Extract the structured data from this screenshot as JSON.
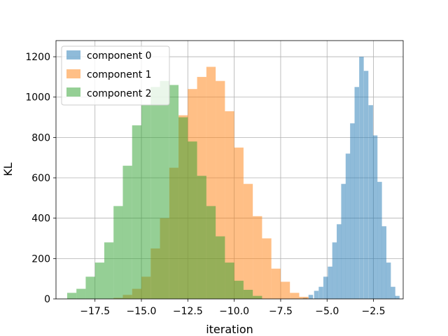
{
  "chart_data": {
    "type": "histogram",
    "title": "",
    "xlabel": "iteration",
    "ylabel": "KL",
    "xlim": [
      -19.6,
      -0.9
    ],
    "ylim": [
      0,
      1280
    ],
    "xticks": [
      -17.5,
      -15.0,
      -12.5,
      -10.0,
      -7.5,
      -5.0,
      -2.5
    ],
    "xtick_labels": [
      "−17.5",
      "−15.0",
      "−12.5",
      "−10.0",
      "−7.5",
      "−5.0",
      "−2.5"
    ],
    "yticks": [
      0,
      200,
      400,
      600,
      800,
      1000,
      1200
    ],
    "ytick_labels": [
      "0",
      "200",
      "400",
      "600",
      "800",
      "1000",
      "1200"
    ],
    "grid": true,
    "legend_position": "upper-left",
    "series": [
      {
        "name": "component 0",
        "color": "#1f77b4",
        "opacity": 0.5,
        "bin_width": 0.245,
        "bins": [
          [
            -6.3,
            5
          ],
          [
            -6.0,
            20
          ],
          [
            -5.7,
            40
          ],
          [
            -5.45,
            60
          ],
          [
            -5.2,
            110
          ],
          [
            -4.96,
            160
          ],
          [
            -4.72,
            280
          ],
          [
            -4.48,
            370
          ],
          [
            -4.24,
            570
          ],
          [
            -4.0,
            720
          ],
          [
            -3.76,
            870
          ],
          [
            -3.52,
            1050
          ],
          [
            -3.27,
            1200
          ],
          [
            -3.02,
            1130
          ],
          [
            -2.77,
            960
          ],
          [
            -2.53,
            810
          ],
          [
            -2.29,
            580
          ],
          [
            -2.05,
            360
          ],
          [
            -1.81,
            180
          ],
          [
            -1.57,
            60
          ],
          [
            -1.34,
            15
          ]
        ]
      },
      {
        "name": "component 1",
        "color": "#ff7f0e",
        "opacity": 0.5,
        "bin_width": 0.5,
        "bins": [
          [
            -16.5,
            5
          ],
          [
            -16.0,
            20
          ],
          [
            -15.5,
            50
          ],
          [
            -15.0,
            110
          ],
          [
            -14.5,
            250
          ],
          [
            -14.0,
            400
          ],
          [
            -13.5,
            650
          ],
          [
            -13.0,
            910
          ],
          [
            -12.5,
            1040
          ],
          [
            -12.0,
            1100
          ],
          [
            -11.5,
            1150
          ],
          [
            -11.0,
            1080
          ],
          [
            -10.5,
            930
          ],
          [
            -10.0,
            750
          ],
          [
            -9.5,
            570
          ],
          [
            -9.0,
            410
          ],
          [
            -8.5,
            300
          ],
          [
            -8.0,
            150
          ],
          [
            -7.5,
            85
          ],
          [
            -7.0,
            30
          ],
          [
            -6.5,
            10
          ]
        ]
      },
      {
        "name": "component 2",
        "color": "#2ca02c",
        "opacity": 0.5,
        "bin_width": 0.5,
        "bins": [
          [
            -19.0,
            30
          ],
          [
            -18.5,
            50
          ],
          [
            -18.0,
            110
          ],
          [
            -17.5,
            180
          ],
          [
            -17.0,
            280
          ],
          [
            -16.5,
            460
          ],
          [
            -16.0,
            660
          ],
          [
            -15.5,
            860
          ],
          [
            -15.0,
            960
          ],
          [
            -14.5,
            1050
          ],
          [
            -14.0,
            1080
          ],
          [
            -13.5,
            1060
          ],
          [
            -13.0,
            900
          ],
          [
            -12.5,
            780
          ],
          [
            -12.0,
            610
          ],
          [
            -11.5,
            460
          ],
          [
            -11.0,
            310
          ],
          [
            -10.5,
            180
          ],
          [
            -10.0,
            90
          ],
          [
            -9.5,
            45
          ],
          [
            -9.0,
            15
          ]
        ]
      }
    ]
  }
}
